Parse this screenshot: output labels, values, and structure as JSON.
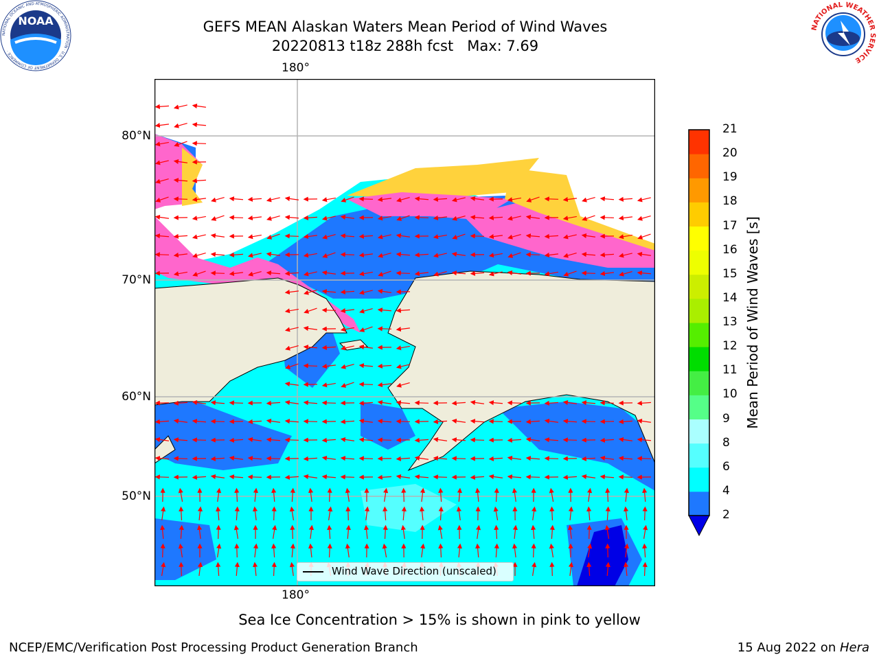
{
  "title": {
    "line1": "GEFS MEAN Alaskan Waters Mean Period of Wind Waves",
    "line2": "20220813 t18z 288h fcst   Max: 7.69"
  },
  "map": {
    "lon_label_top": "180°",
    "lon_label_bottom": "180°",
    "lat_labels": [
      "80°N",
      "70°N",
      "60°N",
      "50°N"
    ],
    "colors": {
      "land": "#efeddb",
      "ice_pink": "#ff66cc",
      "ice_yellow": "#ffd23c",
      "wave_blue": "#1e78ff",
      "wave_cyan": "#00ffff",
      "wave_lightcyan": "#55ffff",
      "wave_darkblue": "#0000e6",
      "arrow": "#ff0000",
      "grid": "#b4b4b4"
    }
  },
  "legend": {
    "label": "Wind Wave Direction (unscaled)"
  },
  "colorbar": {
    "title": "Mean Period of Wind Waves [s]",
    "ticks": [
      "2",
      "4",
      "6",
      "8",
      "9",
      "10",
      "11",
      "12",
      "13",
      "14",
      "15",
      "16",
      "17",
      "18",
      "19",
      "20",
      "21"
    ],
    "colors": [
      "#1e78ff",
      "#00ffff",
      "#55ffff",
      "#aaffff",
      "#55ff88",
      "#44ee44",
      "#00dd00",
      "#55ee00",
      "#aaee00",
      "#ccee00",
      "#eeff00",
      "#ffff00",
      "#ffcc00",
      "#ff9900",
      "#ff6600",
      "#ff3300",
      "#ff0000"
    ],
    "under_color": "#0000e6"
  },
  "caption": "Sea Ice Concentration > 15% is shown in pink to yellow",
  "footer": {
    "left": "NCEP/EMC/Verification Post Processing Product Generation Branch",
    "date": "15 Aug 2022 on ",
    "host": "Hera"
  },
  "logos": {
    "noaa": "NOAA",
    "noaa_ring": "NATIONAL OCEANIC AND ATMOSPHERIC ADMINISTRATION · U.S. DEPARTMENT OF COMMERCE ·",
    "nws_ring": "NATIONAL WEATHER SERVICE"
  }
}
